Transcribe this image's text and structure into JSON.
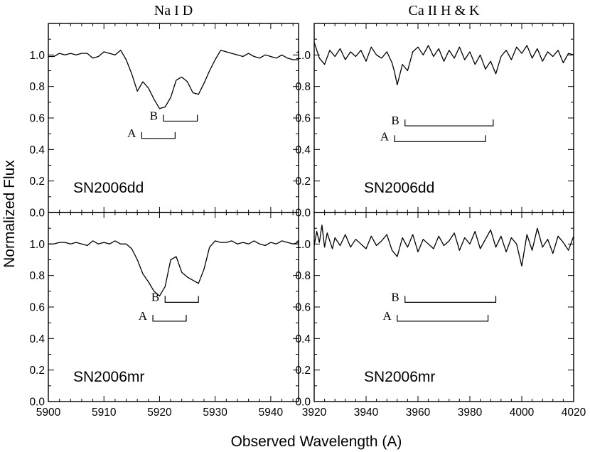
{
  "figure": {
    "ylabel": "Normalized Flux",
    "xlabel": "Observed Wavelength (A)"
  },
  "chart_data": [
    {
      "type": "line",
      "column_title": "Na I D",
      "annotation": "SN2006dd",
      "xlim": [
        5900,
        5945
      ],
      "ylim": [
        0,
        1.2
      ],
      "xticks": [],
      "yticks": [
        0.0,
        0.2,
        0.4,
        0.6,
        0.8,
        1.0
      ],
      "ytick_labels": [
        "0.0",
        "0.2",
        "0.4",
        "0.6",
        "0.8",
        "1.0"
      ],
      "markers": [
        {
          "label": "B",
          "x1": 5920.7,
          "x2": 5926.8,
          "y": 0.58
        },
        {
          "label": "A",
          "x1": 5916.8,
          "x2": 5922.8,
          "y": 0.47
        }
      ],
      "series": [
        {
          "name": "SN2006dd Na I D",
          "x": [
            5900,
            5901,
            5902,
            5903,
            5904,
            5905,
            5906,
            5907,
            5908,
            5909,
            5910,
            5911,
            5912,
            5913,
            5914,
            5915,
            5916,
            5917,
            5918,
            5919,
            5920,
            5921,
            5922,
            5923,
            5924,
            5925,
            5926,
            5927,
            5928,
            5929,
            5930,
            5931,
            5932,
            5933,
            5934,
            5935,
            5936,
            5937,
            5938,
            5939,
            5940,
            5941,
            5942,
            5943,
            5944,
            5945
          ],
          "y": [
            0.99,
            0.99,
            1.01,
            1.0,
            1.01,
            1.0,
            1.01,
            1.01,
            0.98,
            0.99,
            1.02,
            1.01,
            1.0,
            1.03,
            0.97,
            0.88,
            0.77,
            0.83,
            0.79,
            0.72,
            0.66,
            0.67,
            0.73,
            0.84,
            0.86,
            0.83,
            0.76,
            0.75,
            0.82,
            0.9,
            0.97,
            1.03,
            1.02,
            1.01,
            1.0,
            0.99,
            1.01,
            0.99,
            0.98,
            1.0,
            0.99,
            0.98,
            1.0,
            0.98,
            0.97,
            0.97
          ]
        }
      ]
    },
    {
      "type": "line",
      "column_title": "Ca II H & K",
      "annotation": "SN2006dd",
      "xlim": [
        3920,
        4020
      ],
      "ylim": [
        0,
        1.2
      ],
      "xticks": [],
      "yticks": [
        0.0,
        0.2,
        0.4,
        0.6,
        0.8,
        1.0
      ],
      "ytick_labels": [
        "0.0",
        "0.2",
        "0.4",
        "0.6",
        "0.8",
        "1.0"
      ],
      "markers": [
        {
          "label": "B",
          "x1": 3955,
          "x2": 3989,
          "y": 0.55
        },
        {
          "label": "A",
          "x1": 3951,
          "x2": 3986,
          "y": 0.45
        }
      ],
      "series": [
        {
          "name": "SN2006dd Ca II H & K",
          "x": [
            3920,
            3922,
            3924,
            3926,
            3928,
            3930,
            3932,
            3934,
            3936,
            3938,
            3940,
            3942,
            3944,
            3946,
            3948,
            3950,
            3951,
            3952,
            3954,
            3956,
            3958,
            3960,
            3962,
            3964,
            3966,
            3968,
            3970,
            3972,
            3974,
            3976,
            3978,
            3980,
            3982,
            3984,
            3986,
            3988,
            3990,
            3992,
            3994,
            3996,
            3998,
            4000,
            4002,
            4004,
            4006,
            4008,
            4010,
            4012,
            4014,
            4016,
            4018,
            4020
          ],
          "y": [
            1.08,
            0.98,
            0.94,
            1.03,
            0.99,
            1.04,
            0.97,
            1.02,
            0.99,
            1.03,
            0.96,
            1.05,
            1.0,
            0.98,
            1.02,
            0.95,
            0.89,
            0.81,
            0.94,
            0.9,
            1.02,
            1.05,
            1.0,
            1.06,
            0.99,
            1.04,
            0.96,
            1.03,
            0.98,
            1.05,
            0.97,
            1.02,
            0.94,
            1.0,
            0.91,
            0.96,
            0.88,
            0.99,
            1.03,
            0.97,
            1.05,
            1.01,
            1.06,
            0.98,
            1.04,
            0.96,
            1.02,
            0.99,
            1.03,
            0.95,
            1.01,
            1.0
          ]
        }
      ]
    },
    {
      "type": "line",
      "annotation": "SN2006mr",
      "xlim": [
        5900,
        5945
      ],
      "ylim": [
        0,
        1.2
      ],
      "xticks": [
        5900,
        5910,
        5920,
        5930,
        5940
      ],
      "xtick_labels": [
        "5900",
        "5910",
        "5920",
        "5930",
        "5940"
      ],
      "yticks": [
        0.0,
        0.2,
        0.4,
        0.6,
        0.8,
        1.0
      ],
      "ytick_labels": [
        "0.0",
        "0.2",
        "0.4",
        "0.6",
        "0.8",
        "1.0"
      ],
      "markers": [
        {
          "label": "B",
          "x1": 5921.0,
          "x2": 5927.0,
          "y": 0.63
        },
        {
          "label": "A",
          "x1": 5918.8,
          "x2": 5924.8,
          "y": 0.51
        }
      ],
      "series": [
        {
          "name": "SN2006mr Na I D",
          "x": [
            5900,
            5901,
            5902,
            5903,
            5904,
            5905,
            5906,
            5907,
            5908,
            5909,
            5910,
            5911,
            5912,
            5913,
            5914,
            5915,
            5916,
            5917,
            5918,
            5919,
            5920,
            5921,
            5922,
            5923,
            5924,
            5925,
            5926,
            5927,
            5928,
            5929,
            5930,
            5931,
            5932,
            5933,
            5934,
            5935,
            5936,
            5937,
            5938,
            5939,
            5940,
            5941,
            5942,
            5943,
            5944,
            5945
          ],
          "y": [
            1.0,
            1.0,
            1.01,
            1.01,
            1.0,
            1.01,
            1.0,
            0.99,
            1.02,
            1.0,
            1.01,
            1.0,
            1.02,
            1.0,
            1.0,
            0.97,
            0.9,
            0.81,
            0.76,
            0.7,
            0.67,
            0.73,
            0.9,
            0.92,
            0.82,
            0.79,
            0.77,
            0.75,
            0.84,
            0.98,
            1.02,
            1.01,
            1.01,
            1.02,
            1.0,
            1.01,
            1.0,
            1.02,
            1.0,
            0.99,
            1.01,
            1.0,
            1.02,
            1.01,
            1.0,
            1.01
          ]
        }
      ]
    },
    {
      "type": "line",
      "annotation": "SN2006mr",
      "xlim": [
        3920,
        4020
      ],
      "ylim": [
        0,
        1.2
      ],
      "xticks": [
        3920,
        3940,
        3960,
        3980,
        4000,
        4020
      ],
      "xtick_labels": [
        "3920",
        "3940",
        "3960",
        "3980",
        "4000",
        "4020"
      ],
      "yticks": [
        0.0,
        0.2,
        0.4,
        0.6,
        0.8,
        1.0
      ],
      "ytick_labels": [
        "0.0",
        "0.2",
        "0.4",
        "0.6",
        "0.8",
        "1.0"
      ],
      "markers": [
        {
          "label": "B",
          "x1": 3955,
          "x2": 3990,
          "y": 0.63
        },
        {
          "label": "A",
          "x1": 3952,
          "x2": 3987,
          "y": 0.51
        }
      ],
      "series": [
        {
          "name": "SN2006mr Ca II H & K",
          "x": [
            3920,
            3921,
            3922,
            3923,
            3924,
            3925,
            3926,
            3927,
            3928,
            3930,
            3932,
            3934,
            3936,
            3938,
            3940,
            3942,
            3944,
            3946,
            3948,
            3950,
            3952,
            3954,
            3956,
            3958,
            3960,
            3962,
            3964,
            3966,
            3968,
            3970,
            3972,
            3974,
            3976,
            3978,
            3980,
            3982,
            3984,
            3986,
            3988,
            3990,
            3992,
            3994,
            3996,
            3998,
            4000,
            4002,
            4004,
            4006,
            4008,
            4010,
            4012,
            4014,
            4016,
            4018,
            4020
          ],
          "y": [
            0.99,
            1.08,
            1.01,
            1.12,
            0.98,
            1.07,
            1.02,
            0.97,
            1.04,
            0.99,
            1.06,
            0.98,
            1.03,
            1.0,
            0.97,
            1.05,
            0.99,
            1.02,
            1.06,
            0.96,
            0.92,
            1.04,
            0.98,
            1.06,
            0.95,
            1.03,
            1.0,
            0.97,
            1.05,
            0.99,
            1.02,
            1.07,
            0.96,
            1.04,
            1.0,
            1.08,
            0.97,
            1.03,
            1.09,
            0.98,
            1.05,
            0.95,
            1.04,
            1.0,
            0.86,
            1.06,
            0.96,
            1.1,
            0.98,
            1.03,
            0.94,
            1.05,
            1.01,
            0.96,
            1.05
          ]
        }
      ]
    }
  ]
}
